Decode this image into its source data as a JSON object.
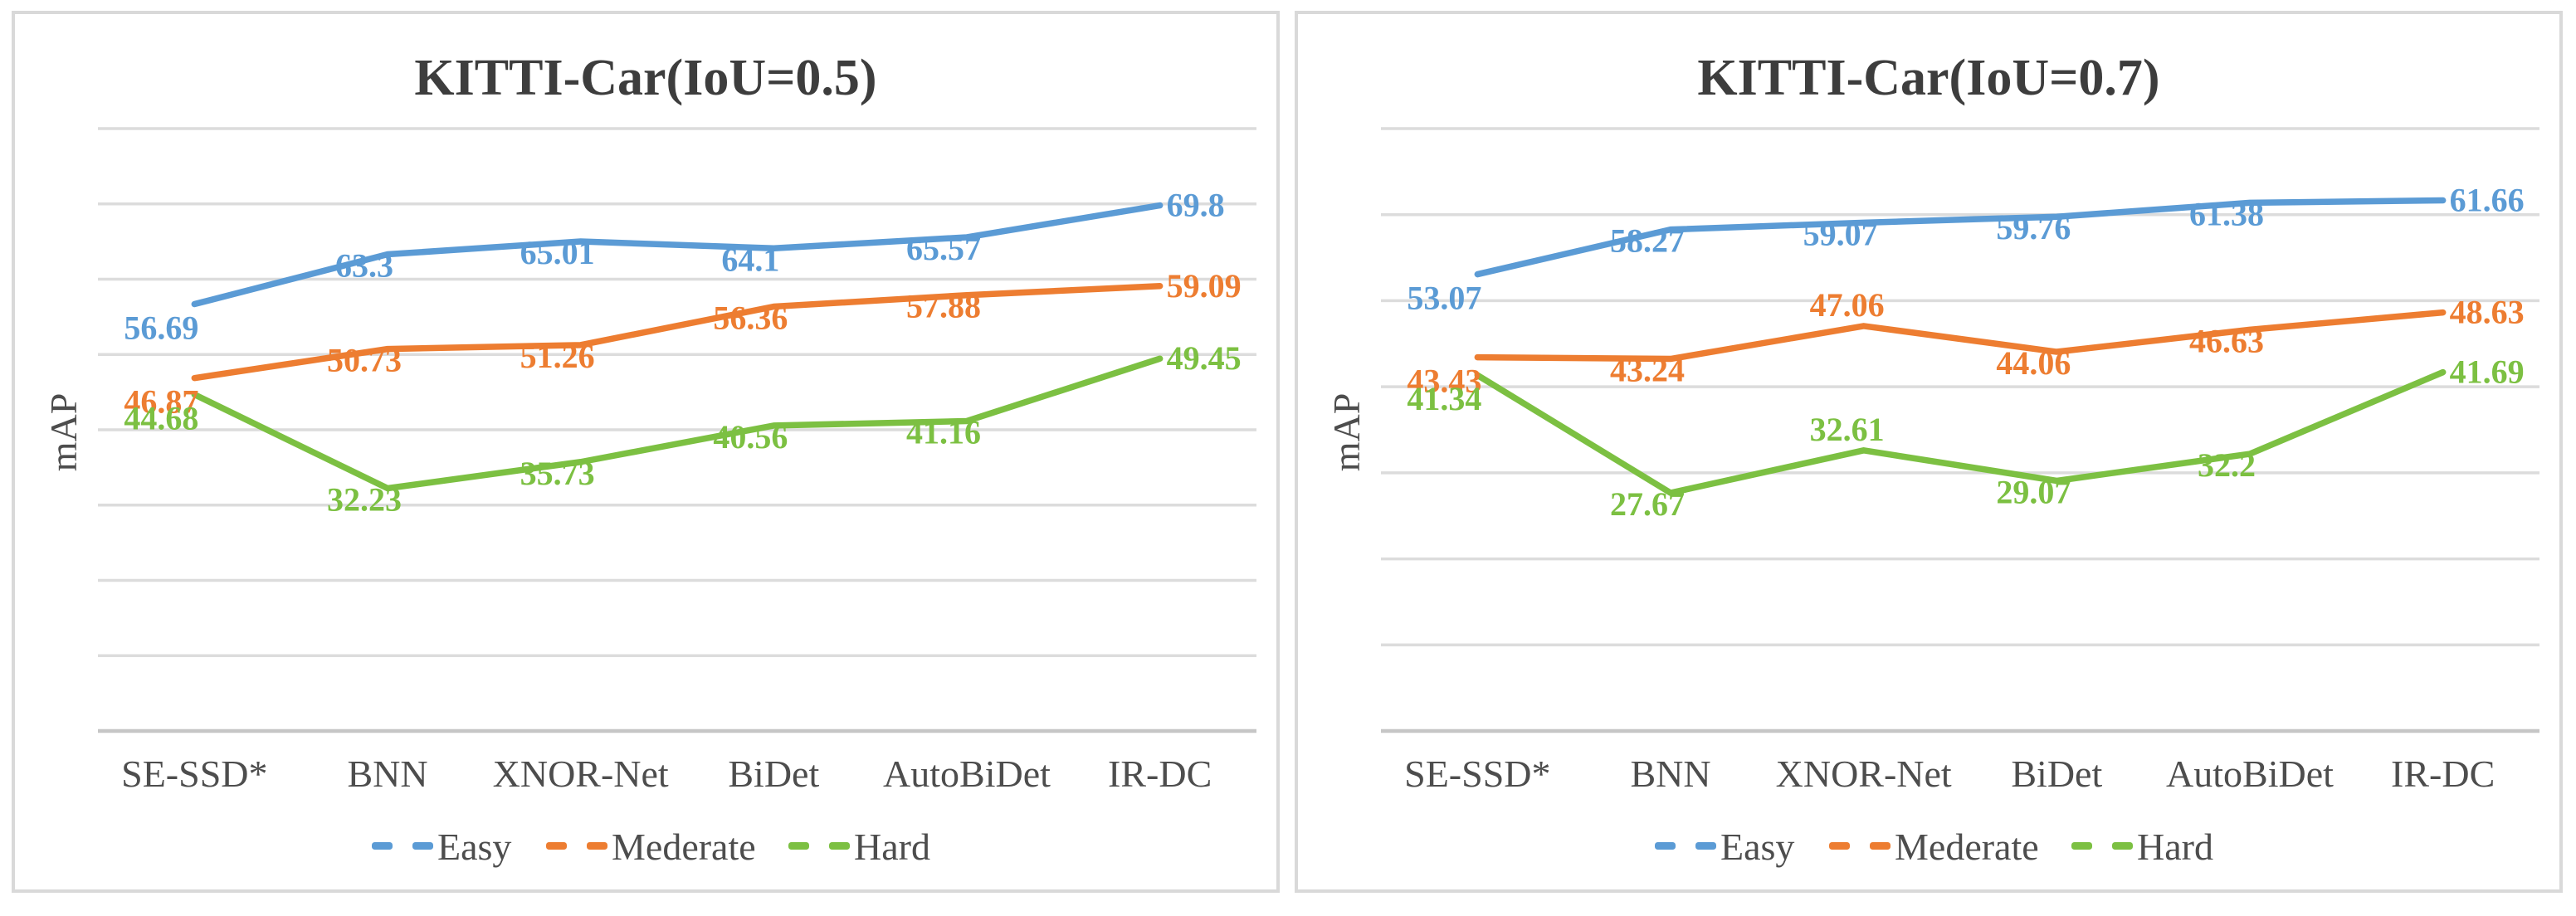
{
  "chart_data": [
    {
      "type": "line",
      "title": "KITTI-Car(IoU=0.5)",
      "ylabel": "mAP",
      "categories": [
        "SE-SSD*",
        "BNN",
        "XNOR-Net",
        "BiDet",
        "AutoBiDet",
        "IR-DC"
      ],
      "series": [
        {
          "name": "Easy",
          "color": "#5B9BD5",
          "values": [
            56.69,
            63.3,
            65.01,
            64.1,
            65.57,
            69.8
          ]
        },
        {
          "name": "Mederate",
          "color": "#ED7D31",
          "values": [
            46.87,
            50.73,
            51.26,
            56.36,
            57.88,
            59.09
          ]
        },
        {
          "name": "Hard",
          "color": "#7CC042",
          "values": [
            44.68,
            32.23,
            35.73,
            40.56,
            41.16,
            49.45
          ]
        }
      ],
      "ylim": [
        0,
        80
      ],
      "grid_step": 10,
      "grid": true,
      "data_labels": true,
      "legend_position": "bottom"
    },
    {
      "type": "line",
      "title": "KITTI-Car(IoU=0.7)",
      "ylabel": "mAP",
      "categories": [
        "SE-SSD*",
        "BNN",
        "XNOR-Net",
        "BiDet",
        "AutoBiDet",
        "IR-DC"
      ],
      "series": [
        {
          "name": "Easy",
          "color": "#5B9BD5",
          "values": [
            53.07,
            58.27,
            59.07,
            59.76,
            61.38,
            61.66
          ]
        },
        {
          "name": "Mederate",
          "color": "#ED7D31",
          "values": [
            43.43,
            43.24,
            47.06,
            44.06,
            46.63,
            48.63
          ]
        },
        {
          "name": "Hard",
          "color": "#7CC042",
          "values": [
            41.34,
            27.67,
            32.61,
            29.07,
            32.2,
            41.69
          ]
        }
      ],
      "ylim": [
        0,
        70
      ],
      "grid_step": 10,
      "grid": true,
      "data_labels": true,
      "legend_position": "bottom"
    }
  ],
  "style": {
    "gridline_color": "#dcdcdc",
    "axis_line_color": "#c6c6c6",
    "text_color": "#4d4d4d",
    "title_color": "#3d3d3d",
    "panel_border_color": "#d9d9d9"
  }
}
